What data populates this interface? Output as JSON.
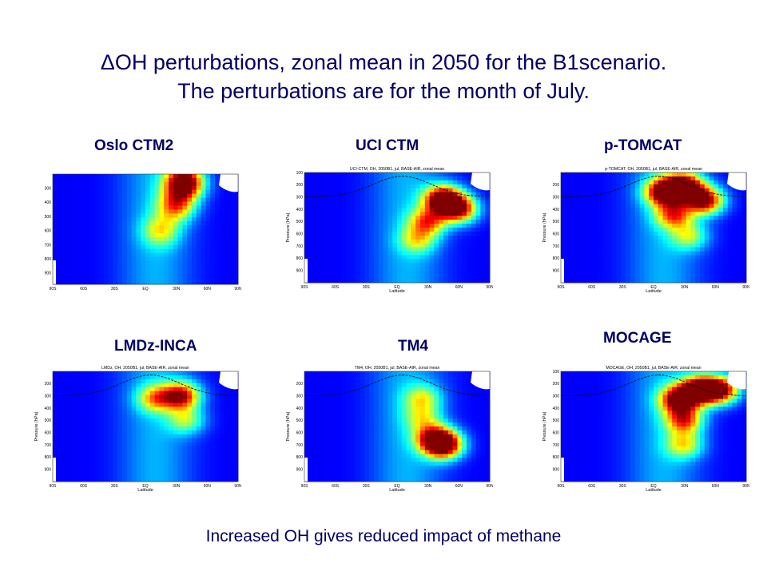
{
  "slide": {
    "title_line1": "ΔOH perturbations, zonal mean in 2050 for the B1scenario.",
    "title_line2": "The perturbations are for the month of July.",
    "footer": "Increased OH gives reduced impact of methane"
  },
  "chart_data": [
    {
      "type": "heatmap",
      "model_label": "Oslo CTM2",
      "title": "",
      "ylabel": "",
      "xlabel": "",
      "x_ticks": [
        "90S",
        "60S",
        "30S",
        "EQ",
        "30N",
        "60N",
        "90N"
      ],
      "y_ticks": [
        "300",
        "400",
        "500",
        "600",
        "700",
        "800",
        "900"
      ],
      "ylim": [
        980,
        200
      ],
      "hotspots": [
        {
          "lat": 38,
          "p": 260,
          "intensity": 1.0
        },
        {
          "lat": 30,
          "p": 420,
          "intensity": 0.55
        },
        {
          "lat": 15,
          "p": 600,
          "intensity": 0.35
        }
      ],
      "tropopause": false
    },
    {
      "type": "heatmap",
      "model_label": "UCI CTM",
      "title": "UCI-CTM, OH, 2050B1, jul, BASE-AIR, zonal mean",
      "ylabel": "Pressure (hPa)",
      "xlabel": "Latitude",
      "x_ticks": [
        "90S",
        "60S",
        "30S",
        "EQ",
        "30N",
        "60N",
        "90N"
      ],
      "y_ticks": [
        "100",
        "200",
        "300",
        "400",
        "500",
        "600",
        "700",
        "800",
        "900"
      ],
      "ylim": [
        1000,
        100
      ],
      "hotspots": [
        {
          "lat": 45,
          "p": 320,
          "intensity": 1.0
        },
        {
          "lat": 60,
          "p": 400,
          "intensity": 0.8
        },
        {
          "lat": 30,
          "p": 500,
          "intensity": 0.55
        },
        {
          "lat": 20,
          "p": 650,
          "intensity": 0.35
        }
      ],
      "tropopause": true
    },
    {
      "type": "heatmap",
      "model_label": "p-TOMCAT",
      "title": "p-TOMCAT, OH, 2050B1, jul, BASE-AIR, zonal mean",
      "ylabel": "Pressure (hPa)",
      "xlabel": "Latitude",
      "x_ticks": [
        "90S",
        "60S",
        "30S",
        "EQ",
        "30N",
        "60N",
        "90N"
      ],
      "y_ticks": [
        "200",
        "300",
        "400",
        "500",
        "600",
        "700",
        "800",
        "900"
      ],
      "ylim": [
        1000,
        100
      ],
      "hotspots": [
        {
          "lat": 30,
          "p": 220,
          "intensity": 1.0
        },
        {
          "lat": 10,
          "p": 260,
          "intensity": 0.85
        },
        {
          "lat": 50,
          "p": 330,
          "intensity": 0.85
        },
        {
          "lat": 20,
          "p": 450,
          "intensity": 0.55
        },
        {
          "lat": 35,
          "p": 620,
          "intensity": 0.35
        }
      ],
      "tropopause": true
    },
    {
      "type": "heatmap",
      "model_label": "LMDz-INCA",
      "title": "LMDz, OH, 2050B1, jul, BASE-AIR, zonal mean",
      "ylabel": "Pressure (hPa)",
      "xlabel": "Latitude",
      "x_ticks": [
        "90S",
        "60S",
        "30S",
        "EQ",
        "30N",
        "60N",
        "90N"
      ],
      "y_ticks": [
        "200",
        "300",
        "400",
        "500",
        "600",
        "700",
        "800",
        "900"
      ],
      "ylim": [
        1000,
        100
      ],
      "hotspots": [
        {
          "lat": 35,
          "p": 300,
          "intensity": 0.75
        },
        {
          "lat": 10,
          "p": 320,
          "intensity": 0.45
        },
        {
          "lat": 40,
          "p": 500,
          "intensity": 0.35
        }
      ],
      "tropopause": true
    },
    {
      "type": "heatmap",
      "model_label": "TM4",
      "title": "TM4, OH, 2050B1, jul, BASE-AIR, zonal mean",
      "ylabel": "Pressure (hPa)",
      "xlabel": "Latitude",
      "x_ticks": [
        "90S",
        "60S",
        "30S",
        "EQ",
        "30N",
        "60N",
        "90N"
      ],
      "y_ticks": [
        "200",
        "300",
        "400",
        "500",
        "600",
        "700",
        "800",
        "900"
      ],
      "ylim": [
        1000,
        100
      ],
      "hotspots": [
        {
          "lat": 45,
          "p": 700,
          "intensity": 1.0
        },
        {
          "lat": 35,
          "p": 640,
          "intensity": 0.55
        },
        {
          "lat": 25,
          "p": 320,
          "intensity": 0.35
        },
        {
          "lat": 25,
          "p": 480,
          "intensity": 0.3
        }
      ],
      "tropopause": true
    },
    {
      "type": "heatmap",
      "model_label": "MOCAGE",
      "title": "MOCAGE, OH, 2050B1, jul, BASE-AIR, zonal mean",
      "ylabel": "Pressure (hPa)",
      "xlabel": "Latitude",
      "x_ticks": [
        "90S",
        "60S",
        "30S",
        "EQ",
        "30N",
        "60N",
        "90N"
      ],
      "y_ticks": [
        "100",
        "200",
        "300",
        "400",
        "500",
        "600",
        "700",
        "800",
        "900"
      ],
      "ylim": [
        1000,
        100
      ],
      "hotspots": [
        {
          "lat": 45,
          "p": 250,
          "intensity": 1.0
        },
        {
          "lat": 65,
          "p": 250,
          "intensity": 0.85
        },
        {
          "lat": 25,
          "p": 330,
          "intensity": 0.85
        },
        {
          "lat": 30,
          "p": 500,
          "intensity": 0.6
        },
        {
          "lat": 30,
          "p": 700,
          "intensity": 0.4
        }
      ],
      "tropopause": true
    }
  ]
}
